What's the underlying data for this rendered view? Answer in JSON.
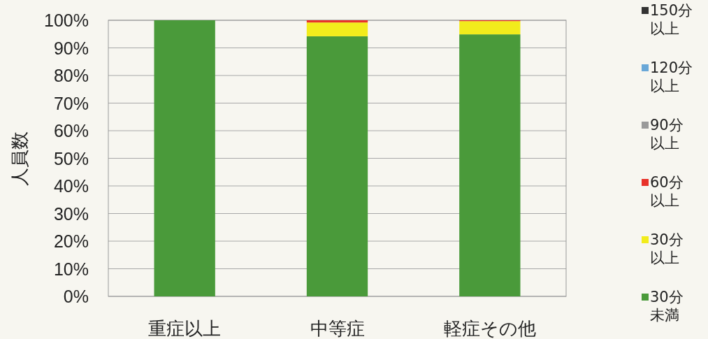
{
  "chart_data": {
    "type": "bar",
    "stacked": true,
    "ylabel": "人員数",
    "categories": [
      "重症以上",
      "中等症",
      "軽症その他"
    ],
    "series": [
      {
        "name": "30分未満",
        "color": "#4a9a3a",
        "values": [
          100,
          94.2,
          94.9
        ]
      },
      {
        "name": "30分以上",
        "color": "#f2ec1c",
        "values": [
          0,
          5.0,
          4.8
        ]
      },
      {
        "name": "60分以上",
        "color": "#e8322a",
        "values": [
          0,
          0.8,
          0.3
        ]
      },
      {
        "name": "90分以上",
        "color": "#9a9a9a",
        "values": [
          0,
          0,
          0
        ]
      },
      {
        "name": "120分以上",
        "color": "#6aa8d8",
        "values": [
          0,
          0,
          0
        ]
      },
      {
        "name": "150分以上",
        "color": "#333333",
        "values": [
          0,
          0,
          0
        ]
      }
    ],
    "ylim": [
      0,
      100
    ],
    "yticks": [
      {
        "value": 0,
        "label": "0%"
      },
      {
        "value": 10,
        "label": "10%"
      },
      {
        "value": 20,
        "label": "20%"
      },
      {
        "value": 30,
        "label": "30%"
      },
      {
        "value": 40,
        "label": "40%"
      },
      {
        "value": 50,
        "label": "50%"
      },
      {
        "value": 60,
        "label": "60%"
      },
      {
        "value": 70,
        "label": "70%"
      },
      {
        "value": 80,
        "label": "80%"
      },
      {
        "value": 90,
        "label": "90%"
      },
      {
        "value": 100,
        "label": "100%"
      }
    ],
    "grid": "y",
    "legend": "right"
  }
}
